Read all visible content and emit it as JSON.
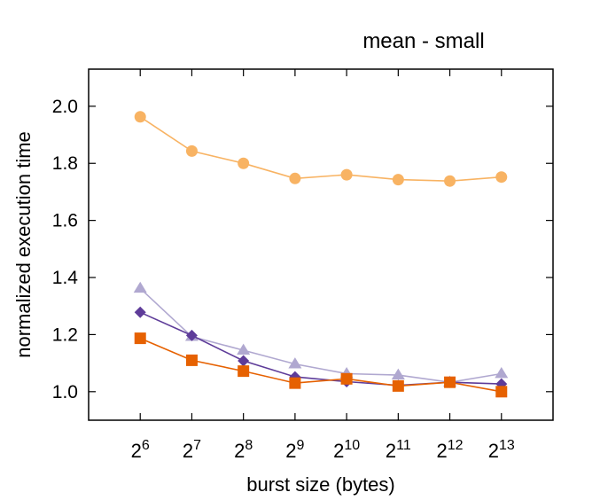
{
  "chart_data": {
    "type": "line",
    "title": "mean - small",
    "xlabel": "burst size (bytes)",
    "ylabel": "normalized execution time",
    "x_tick_labels": [
      {
        "base": "2",
        "exp": "6"
      },
      {
        "base": "2",
        "exp": "7"
      },
      {
        "base": "2",
        "exp": "8"
      },
      {
        "base": "2",
        "exp": "9"
      },
      {
        "base": "2",
        "exp": "10"
      },
      {
        "base": "2",
        "exp": "11"
      },
      {
        "base": "2",
        "exp": "12"
      },
      {
        "base": "2",
        "exp": "13"
      }
    ],
    "x": [
      64,
      128,
      256,
      512,
      1024,
      2048,
      4096,
      8192
    ],
    "x_scale": "log2",
    "xlim": [
      32,
      16384
    ],
    "ylim": [
      0.9,
      2.13
    ],
    "y_ticks": [
      1.0,
      1.2,
      1.4,
      1.6,
      1.8,
      2.0
    ],
    "y_tick_labels": [
      "1.0",
      "1.2",
      "1.4",
      "1.6",
      "1.8",
      "2.0"
    ],
    "grid": false,
    "legend": "none",
    "series": [
      {
        "values": [
          1.963,
          1.843,
          1.8,
          1.747,
          1.76,
          1.743,
          1.738,
          1.752
        ],
        "color": "#f8b363",
        "marker": "circle"
      },
      {
        "values": [
          1.362,
          1.193,
          1.145,
          1.097,
          1.063,
          1.058,
          1.033,
          1.063
        ],
        "color": "#b0a8d0",
        "marker": "triangle"
      },
      {
        "values": [
          1.278,
          1.197,
          1.108,
          1.052,
          1.035,
          1.022,
          1.033,
          1.027
        ],
        "color": "#5e3c99",
        "marker": "diamond"
      },
      {
        "values": [
          1.187,
          1.11,
          1.072,
          1.03,
          1.045,
          1.02,
          1.033,
          1.0
        ],
        "color": "#e66101",
        "marker": "square"
      }
    ]
  }
}
